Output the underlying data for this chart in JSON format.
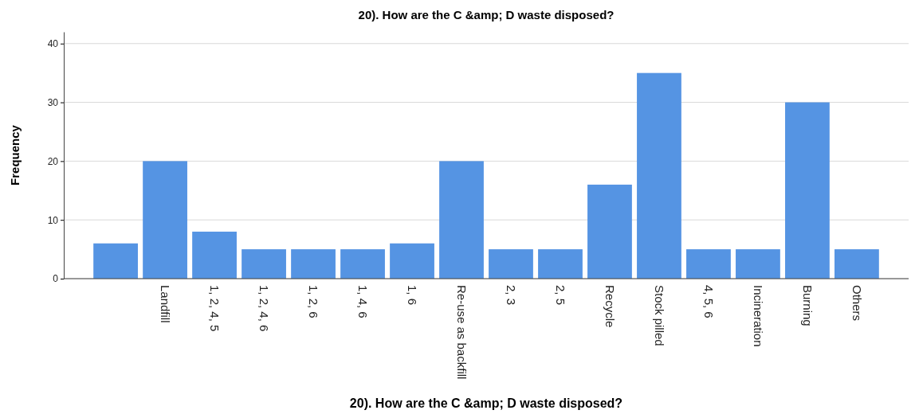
{
  "chart_data": {
    "type": "bar",
    "title": "20). How are the C &amp; D waste disposed?",
    "xlabel": "20). How are the C &amp; D waste disposed?",
    "ylabel": "Frequency",
    "categories": [
      null,
      "Landfill",
      "1, 2, 4, 5",
      "1, 2, 4, 6",
      "1, 2, 6",
      "1, 4, 6",
      "1, 6",
      "Re-use as backfill",
      "2, 3",
      "2, 5",
      "Recycle",
      "Stock pilled",
      "4, 5, 6",
      "Incineration",
      "Burning",
      "Others"
    ],
    "values": [
      6,
      20,
      8,
      5,
      5,
      5,
      6,
      20,
      5,
      5,
      16,
      35,
      5,
      5,
      30,
      5
    ],
    "color": "#5594e3",
    "ylim": [
      0,
      42
    ],
    "yticks": [
      0,
      10,
      20,
      30,
      40
    ],
    "grid": "y"
  }
}
